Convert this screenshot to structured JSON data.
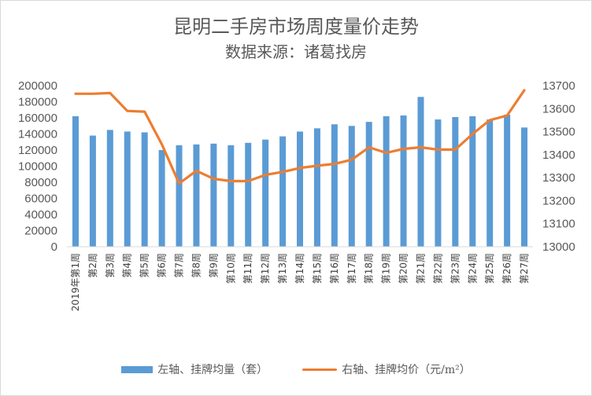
{
  "chart_data": {
    "type": "bar+line",
    "title": "昆明二手房市场周度量价走势",
    "subtitle": "数据来源：诸葛找房",
    "categories": [
      "2019年第1周",
      "第2周",
      "第3周",
      "第4周",
      "第5周",
      "第6周",
      "第7周",
      "第8周",
      "第9周",
      "第10周",
      "第11周",
      "第12周",
      "第13周",
      "第14周",
      "第15周",
      "第16周",
      "第17周",
      "第18周",
      "第19周",
      "第20周",
      "第21周",
      "第22周",
      "第23周",
      "第24周",
      "第25周",
      "第26周",
      "第27周"
    ],
    "series": [
      {
        "name": "左轴、挂牌均量（套）",
        "type": "bar",
        "axis": "left",
        "color": "#5b9bd5",
        "values": [
          162000,
          138000,
          145000,
          143000,
          142000,
          120000,
          126000,
          127000,
          128000,
          126000,
          129000,
          133000,
          137000,
          143000,
          147000,
          152000,
          150000,
          155000,
          162000,
          163000,
          186000,
          158000,
          161000,
          162000,
          158000,
          164000,
          148000
        ]
      },
      {
        "name": "右轴、挂牌均价（元/m²）",
        "type": "line",
        "axis": "right",
        "color": "#ed7d31",
        "values": [
          13665,
          13665,
          13668,
          13590,
          13587,
          13445,
          13275,
          13330,
          13295,
          13285,
          13285,
          13312,
          13325,
          13342,
          13352,
          13360,
          13378,
          13432,
          13408,
          13425,
          13432,
          13422,
          13422,
          13490,
          13550,
          13570,
          13680
        ]
      }
    ],
    "y_left": {
      "min": 0,
      "max": 200000,
      "step": 20000,
      "ticks": [
        "0",
        "20000",
        "40000",
        "60000",
        "80000",
        "100000",
        "120000",
        "140000",
        "160000",
        "180000",
        "200000"
      ]
    },
    "y_right": {
      "min": 13000,
      "max": 13700,
      "step": 100,
      "ticks": [
        "13000",
        "13100",
        "13200",
        "13300",
        "13400",
        "13500",
        "13600",
        "13700"
      ]
    },
    "grid": false,
    "legend_position": "bottom"
  }
}
